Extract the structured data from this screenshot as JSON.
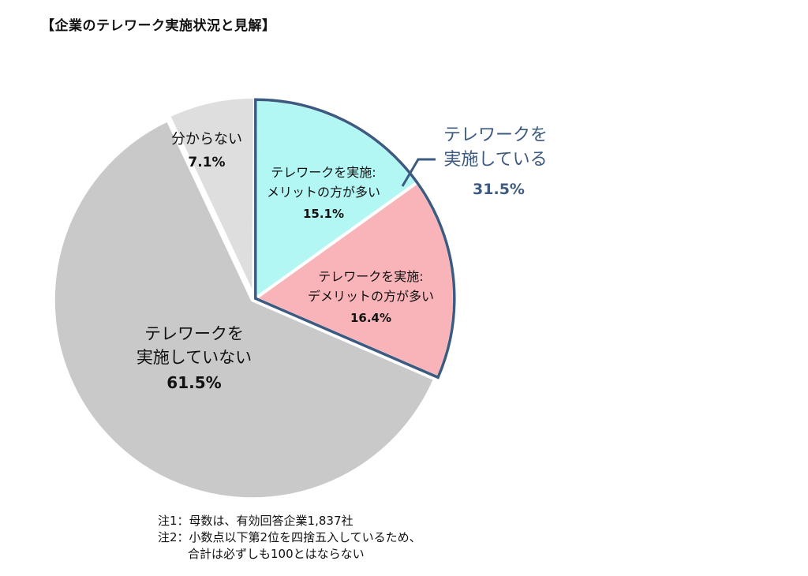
{
  "chart_data": {
    "type": "pie",
    "title": "【企業のテレワーク実施状況と見解】",
    "slices": [
      {
        "label_lines": [
          "テレワークを実施:",
          "メリットの方が多い"
        ],
        "value": 15.1,
        "display": "15.1%",
        "color": "#b3f7f4"
      },
      {
        "label_lines": [
          "テレワークを実施:",
          "デメリットの方が多い"
        ],
        "value": 16.4,
        "display": "16.4%",
        "color": "#f9b4b9"
      },
      {
        "label_lines": [
          "テレワークを",
          "実施していない"
        ],
        "value": 61.5,
        "display": "61.5%",
        "color": "#c9c9c9"
      },
      {
        "label_lines": [
          "分からない"
        ],
        "value": 7.1,
        "display": "7.1%",
        "color": "#dedede"
      }
    ],
    "group": {
      "label_lines": [
        "テレワークを",
        "実施している"
      ],
      "display": "31.5%",
      "color": "#3d5a80",
      "members": [
        0,
        1
      ]
    }
  },
  "notes": {
    "note1": "注1：母数は、有効回答企業1,837社",
    "note2": "注2：小数点以下第2位を四捨五入しているため、",
    "note2_cont": "合計は必ずしも100とはならない"
  }
}
